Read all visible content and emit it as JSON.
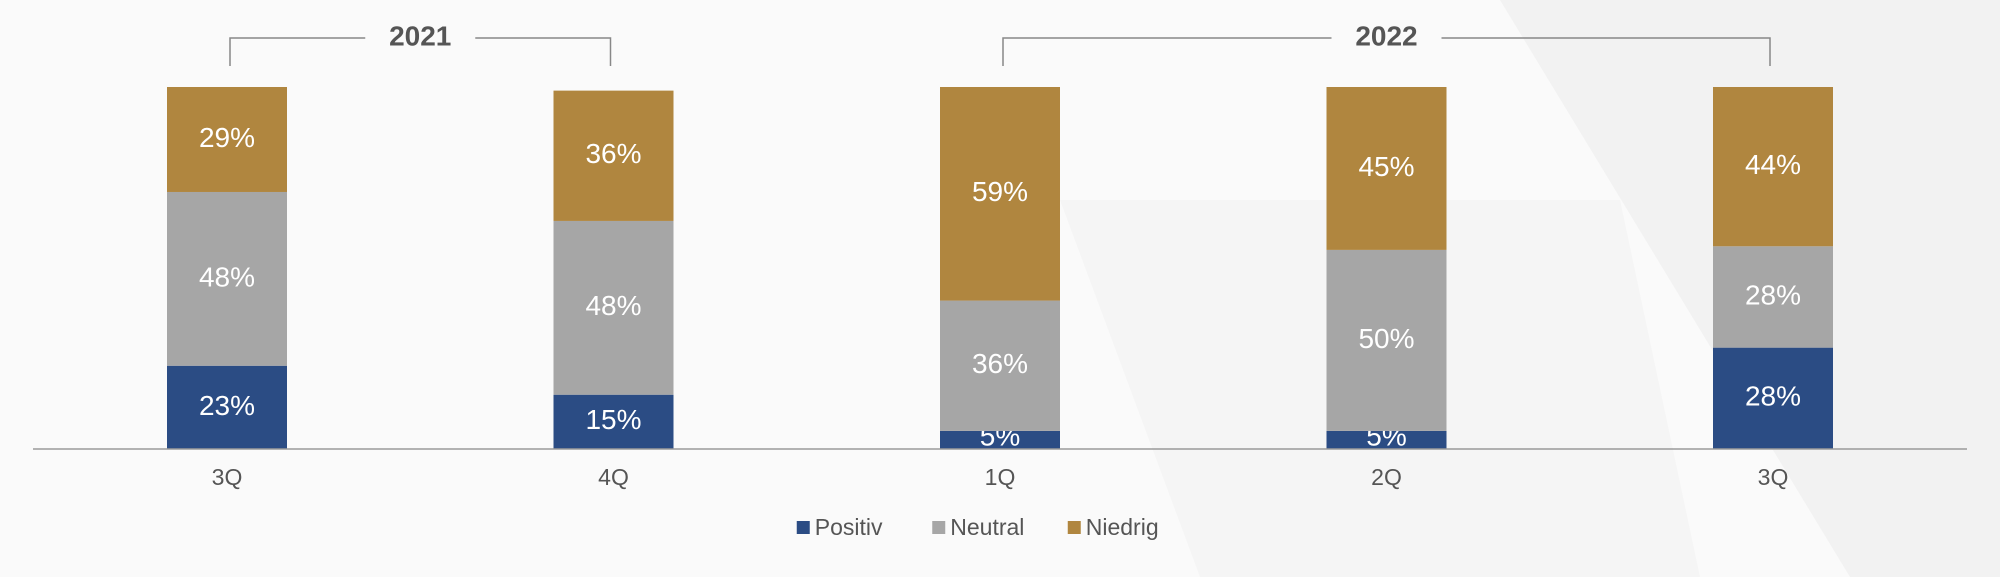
{
  "chart_data": {
    "type": "stacked-bar",
    "categories": [
      "3Q",
      "4Q",
      "1Q",
      "2Q",
      "3Q"
    ],
    "groups": [
      {
        "label": "2021",
        "span": 2
      },
      {
        "label": "2022",
        "span": 3
      }
    ],
    "series": [
      {
        "name": "Positiv",
        "color": "#2b4c84",
        "values": [
          23,
          15,
          5,
          5,
          28
        ],
        "value_labels": [
          "23%",
          "15%",
          "5%",
          "5%",
          "28%"
        ]
      },
      {
        "name": "Neutral",
        "color": "#a6a6a6",
        "values": [
          48,
          48,
          36,
          50,
          28
        ],
        "value_labels": [
          "48%",
          "48%",
          "36%",
          "50%",
          "28%"
        ]
      },
      {
        "name": "Niedrig",
        "color": "#b0863f",
        "values": [
          29,
          36,
          59,
          45,
          44
        ],
        "value_labels": [
          "29%",
          "36%",
          "59%",
          "45%",
          "44%"
        ]
      }
    ],
    "ylim": [
      0,
      100
    ],
    "legend": "bottom"
  }
}
